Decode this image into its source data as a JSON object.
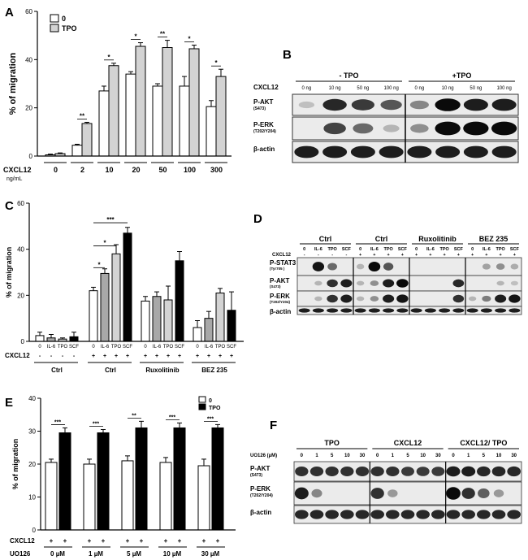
{
  "panels": {
    "A": {
      "label": "A",
      "chart_data": {
        "type": "bar",
        "categories": [
          "0",
          "2",
          "10",
          "20",
          "50",
          "100",
          "300"
        ],
        "series": [
          {
            "name": "0",
            "values": [
              0.5,
              4.5,
              27,
              34,
              29,
              29,
              20.5
            ],
            "errors": [
              0.3,
              0.4,
              2,
              1,
              1,
              4,
              2.5
            ],
            "color": "#ffffff"
          },
          {
            "name": "TPO",
            "values": [
              1,
              13.5,
              37.5,
              45.5,
              45,
              44.5,
              33
            ],
            "errors": [
              0.3,
              0.5,
              1,
              1.5,
              3,
              1.5,
              3
            ],
            "color": "#d3d3d3"
          }
        ],
        "significance": [
          "",
          "**",
          "*",
          "*",
          "**",
          "*",
          "*"
        ],
        "ylabel": "% of migration",
        "xlabel_prefix": "CXCL12",
        "xlabel_unit": "ng/mL",
        "ylim": [
          0,
          60
        ],
        "yticks": [
          0,
          20,
          40,
          60
        ],
        "legend": "top-left"
      }
    },
    "C": {
      "label": "C",
      "chart_data": {
        "type": "bar",
        "groups": [
          "Ctrl",
          "Ctrl",
          "Ruxolitinib",
          "BEZ 235"
        ],
        "bar_labels": [
          "0",
          "IL-6",
          "TPO",
          "SCF"
        ],
        "cxcl12_row": [
          [
            "-",
            "-",
            "-",
            "-"
          ],
          [
            "+",
            "+",
            "+",
            "+"
          ],
          [
            "+",
            "+",
            "+",
            "+"
          ],
          [
            "+",
            "+",
            "+",
            "+"
          ]
        ],
        "values": [
          [
            2.5,
            1.5,
            1,
            2
          ],
          [
            22,
            29.5,
            38,
            47
          ],
          [
            17.5,
            19.5,
            18,
            35
          ],
          [
            6,
            10,
            21,
            13.5
          ]
        ],
        "errors": [
          [
            1.5,
            1.5,
            0.5,
            2
          ],
          [
            1.5,
            2,
            4,
            2.5
          ],
          [
            2,
            2,
            6,
            4
          ],
          [
            3,
            3,
            2,
            8
          ]
        ],
        "colors": [
          "#ffffff",
          "#a8a8a8",
          "#d3d3d3",
          "#000000"
        ],
        "significance": [
          {
            "from": 0,
            "to": 1,
            "mark": "*"
          },
          {
            "from": 0,
            "to": 2,
            "mark": "*"
          },
          {
            "from": 0,
            "to": 3,
            "mark": "***"
          }
        ],
        "ylabel": "% of migration",
        "row_label": "CXCL12",
        "ylim": [
          0,
          60
        ],
        "yticks": [
          0,
          20,
          40,
          60
        ]
      }
    },
    "E": {
      "label": "E",
      "chart_data": {
        "type": "bar",
        "categories": [
          "0 µM",
          "1 µM",
          "5 µM",
          "10 µM",
          "30 µM"
        ],
        "series": [
          {
            "name": "0",
            "values": [
              20.5,
              20,
              21,
              20.5,
              19.5
            ],
            "errors": [
              1,
              1.5,
              1.5,
              1.5,
              2
            ],
            "color": "#ffffff"
          },
          {
            "name": "TPO",
            "values": [
              29.5,
              29.5,
              31,
              31,
              31
            ],
            "errors": [
              1.5,
              1,
              2,
              1.5,
              1
            ],
            "color": "#000000"
          }
        ],
        "significance": [
          "***",
          "***",
          "**",
          "***",
          "***"
        ],
        "ylabel": "% of migration",
        "row1_label": "CXCL12",
        "row2_label": "UO126",
        "ylim": [
          0,
          40
        ],
        "yticks": [
          0,
          10,
          20,
          30,
          40
        ],
        "legend": "top-right"
      }
    },
    "B": {
      "label": "B",
      "header_left": "- TPO",
      "header_right": "+TPO",
      "row_title": "CXCL12",
      "lanes": [
        "0 ng",
        "10 ng",
        "50 ng",
        "100 ng",
        "0 ng",
        "10 ng",
        "50 ng",
        "100 ng"
      ],
      "rows": [
        {
          "name": "P-AKT",
          "sub": "(S473)",
          "bands": [
            0.05,
            0.85,
            0.75,
            0.6,
            0.35,
            1,
            0.9,
            0.9
          ]
        },
        {
          "name": "P-ERK",
          "sub": "(T202/Y204)",
          "bands": [
            0,
            0.7,
            0.5,
            0.1,
            0.3,
            1,
            1,
            1
          ]
        },
        {
          "name": "β-actin",
          "sub": "",
          "bands": [
            0.9,
            0.9,
            0.9,
            0.9,
            0.9,
            0.9,
            0.9,
            0.9
          ]
        }
      ]
    },
    "D": {
      "label": "D",
      "groups": [
        "Ctrl",
        "Ctrl",
        "Ruxolitinib",
        "BEZ 235"
      ],
      "lanes": [
        "0",
        "IL-6",
        "TPO",
        "SCF"
      ],
      "cxcl12_label": "CXCL12",
      "cxcl12_row": [
        [
          "-",
          "-",
          "-",
          "-"
        ],
        [
          "+",
          "+",
          "+",
          "+"
        ],
        [
          "+",
          "+",
          "+",
          "+"
        ],
        [
          "+",
          "+",
          "+",
          "+"
        ]
      ],
      "rows": [
        {
          "name": "P-STAT3",
          "sub": "(Tyr705 )",
          "bands": [
            0,
            0.95,
            0.5,
            0,
            0.1,
            1,
            0.6,
            0,
            0,
            0,
            0,
            0,
            0,
            0.2,
            0.3,
            0.15
          ]
        },
        {
          "name": "P-AKT",
          "sub": "(S473)",
          "bands": [
            0,
            0.1,
            0.8,
            0.9,
            0.1,
            0.3,
            0.9,
            1,
            0,
            0,
            0,
            0.85,
            0,
            0,
            0.1,
            0.05
          ]
        },
        {
          "name": "P-ERK",
          "sub": "(T202/Y204)",
          "bands": [
            0,
            0.1,
            0.8,
            0.9,
            0.1,
            0.3,
            0.9,
            0.95,
            0,
            0,
            0,
            0.8,
            0.1,
            0.4,
            0.9,
            0.95
          ]
        },
        {
          "name": "β-actin",
          "sub": "",
          "bands": [
            0.9,
            0.9,
            0.9,
            0.9,
            0.9,
            0.9,
            0.9,
            0.9,
            0.9,
            0.9,
            0.9,
            0.9,
            0.9,
            0.9,
            0.9,
            0.9
          ]
        }
      ]
    },
    "F": {
      "label": "F",
      "groups": [
        "TPO",
        "CXCL12",
        "CXCL12/ TPO"
      ],
      "row_title": "UO126 (µM)",
      "lanes": [
        "0",
        "1",
        "5",
        "10",
        "30"
      ],
      "rows": [
        {
          "name": "P-AKT",
          "sub": "(S473)",
          "bands": [
            0.8,
            0.8,
            0.8,
            0.8,
            0.8,
            0.8,
            0.8,
            0.75,
            0.75,
            0.75,
            0.9,
            0.9,
            0.85,
            0.85,
            0.85
          ]
        },
        {
          "name": "P-ERK",
          "sub": "(T202/Y204)",
          "bands": [
            0.9,
            0.35,
            0,
            0,
            0,
            0.8,
            0.25,
            0,
            0,
            0,
            1,
            0.8,
            0.55,
            0.25,
            0
          ]
        },
        {
          "name": "β-actin",
          "sub": "",
          "bands": [
            0.85,
            0.85,
            0.85,
            0.85,
            0.85,
            0.85,
            0.85,
            0.85,
            0.85,
            0.85,
            0.85,
            0.85,
            0.85,
            0.85,
            0.85
          ]
        }
      ]
    }
  }
}
